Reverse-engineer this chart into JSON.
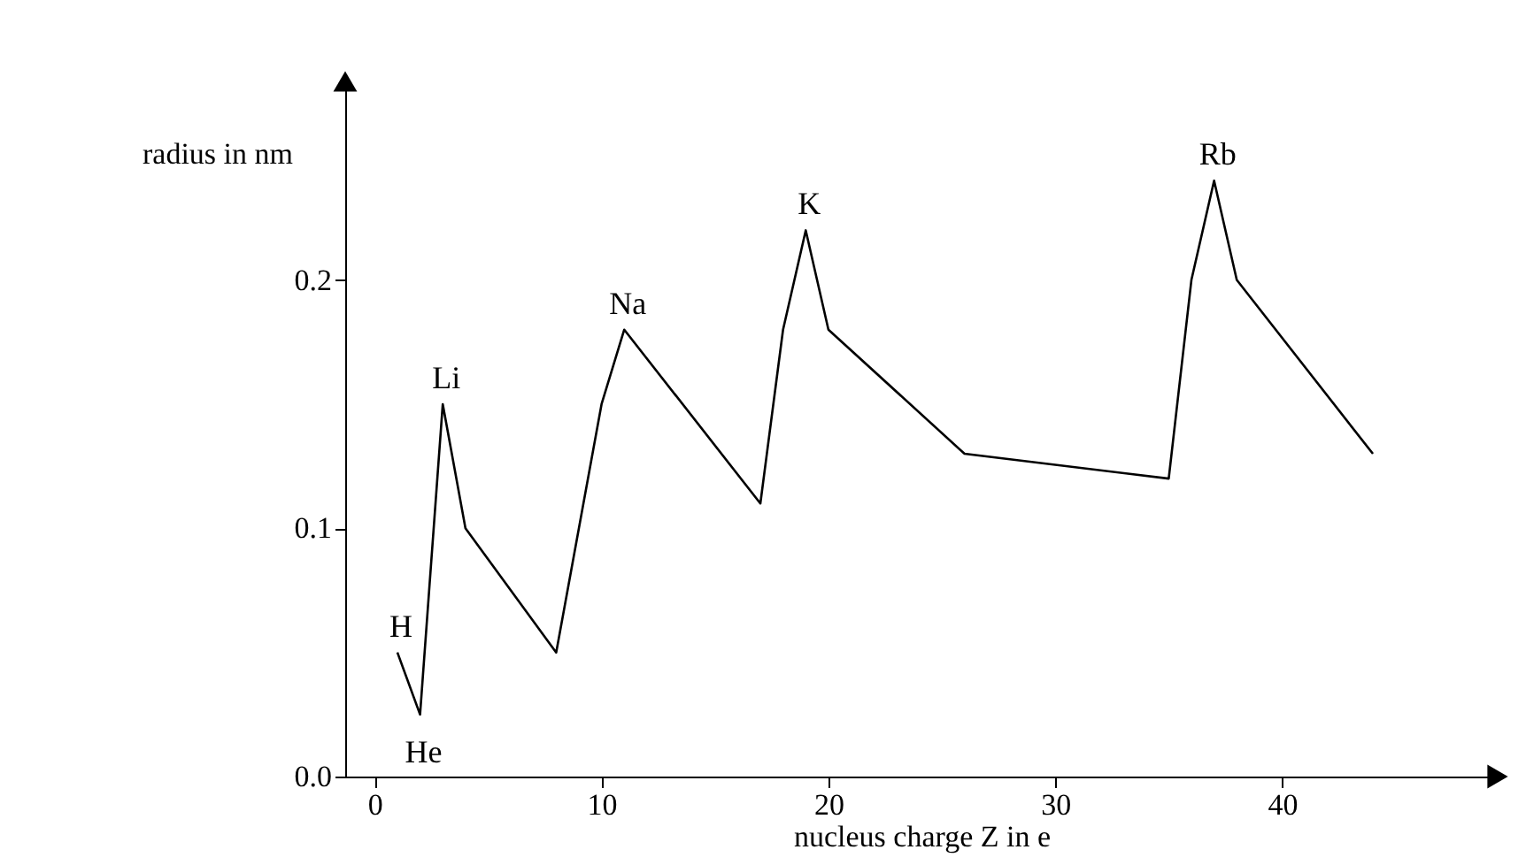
{
  "chart_data": {
    "type": "line",
    "xlabel": "nucleus charge Z in e",
    "ylabel": "radius in nm",
    "x": [
      1,
      2,
      3,
      4,
      8,
      10,
      11,
      17,
      18,
      19,
      20,
      26,
      35,
      36,
      37,
      38,
      44
    ],
    "series": [
      {
        "color": "#000000",
        "values": [
          0.05,
          0.025,
          0.15,
          0.1,
          0.05,
          0.15,
          0.18,
          0.11,
          0.18,
          0.22,
          0.18,
          0.13,
          0.12,
          0.2,
          0.24,
          0.2,
          0.13
        ]
      }
    ],
    "xlim": [
      -1.3,
      49.5
    ],
    "ylim": [
      0,
      0.28
    ],
    "xticks": [
      0,
      10,
      20,
      30,
      40
    ],
    "yticks": [
      {
        "value": 0,
        "label": "0.0"
      },
      {
        "value": 0.1,
        "label": "0.1"
      },
      {
        "value": 0.2,
        "label": "0.2"
      }
    ],
    "annotations": [
      {
        "text": "H",
        "x": 1,
        "y": 0.05
      },
      {
        "text": "He",
        "x": 2,
        "y": 0.025
      },
      {
        "text": "Li",
        "x": 3,
        "y": 0.15
      },
      {
        "text": "Na",
        "x": 11,
        "y": 0.18
      },
      {
        "text": "K",
        "x": 19,
        "y": 0.22
      },
      {
        "text": "Rb",
        "x": 37,
        "y": 0.24
      }
    ],
    "grid": false,
    "marker": "none",
    "line_style": "solid"
  }
}
